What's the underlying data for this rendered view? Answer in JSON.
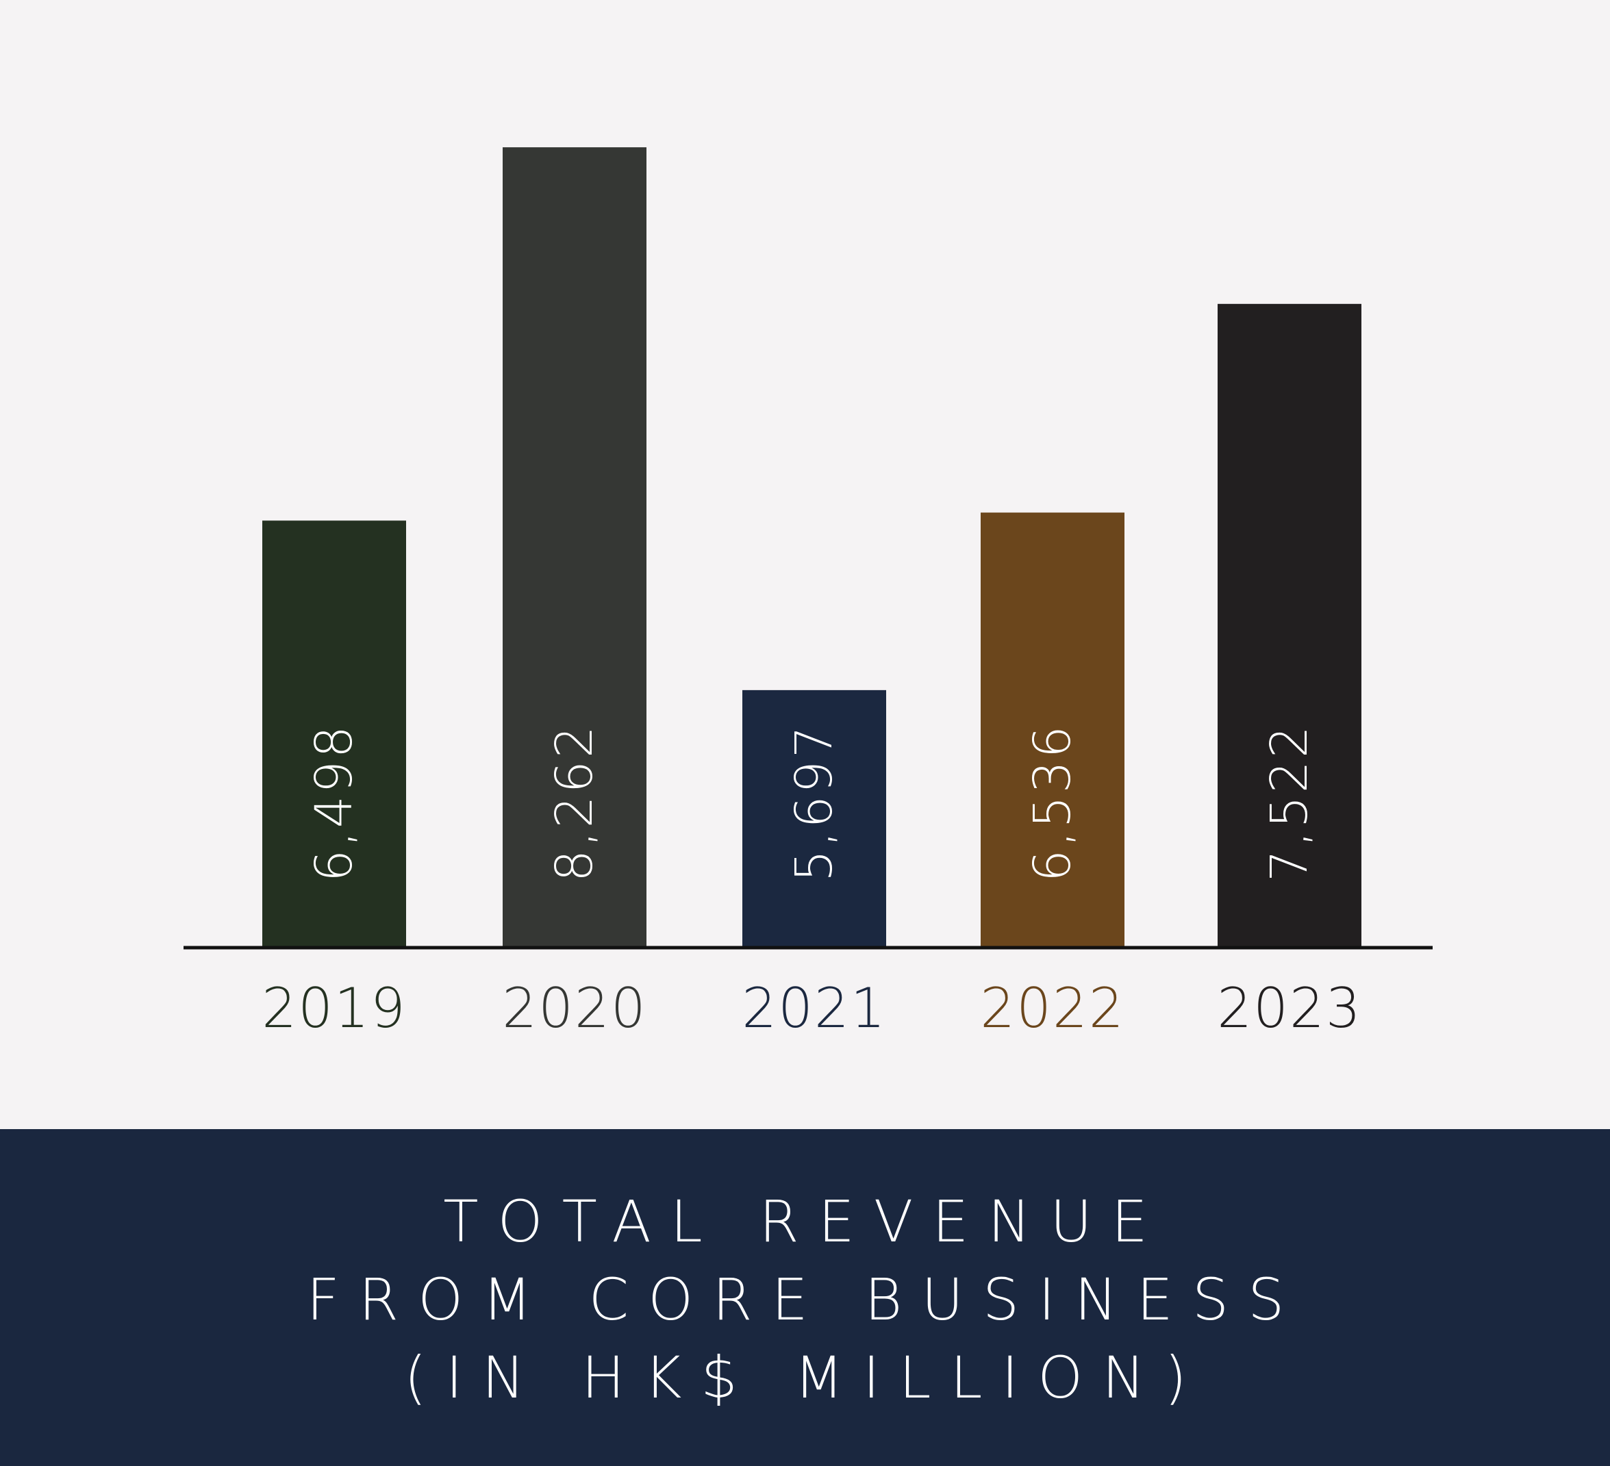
{
  "chart_data": {
    "type": "bar",
    "title": "TOTAL REVENUE FROM CORE BUSINESS (IN HK$ MILLION)",
    "title_lines": [
      "TOTAL REVENUE",
      "FROM CORE BUSINESS",
      "(IN HK$ MILLION)"
    ],
    "categories": [
      "2019",
      "2020",
      "2021",
      "2022",
      "2023"
    ],
    "values": [
      6498,
      8262,
      5697,
      6536,
      7522
    ],
    "value_labels": [
      "6,498",
      "8,262",
      "5,697",
      "6,536",
      "7,522"
    ],
    "bar_colors": [
      "#243121",
      "#353734",
      "#1b2840",
      "#6b461c",
      "#221f20"
    ],
    "category_label_colors": [
      "#243121",
      "#353734",
      "#1b2840",
      "#6b461c",
      "#221f20"
    ],
    "value_label_color": "#ffffff",
    "value_label_orientation": "vertical",
    "baseline_value": 4480,
    "ylim": [
      4480,
      8560
    ],
    "axis_color": "#111111",
    "grid": false,
    "legend": "none",
    "xlabel": "",
    "ylabel": ""
  },
  "colors": {
    "background": "#f5f3f4",
    "caption_band": "#1a273f",
    "caption_text": "#ffffff"
  }
}
